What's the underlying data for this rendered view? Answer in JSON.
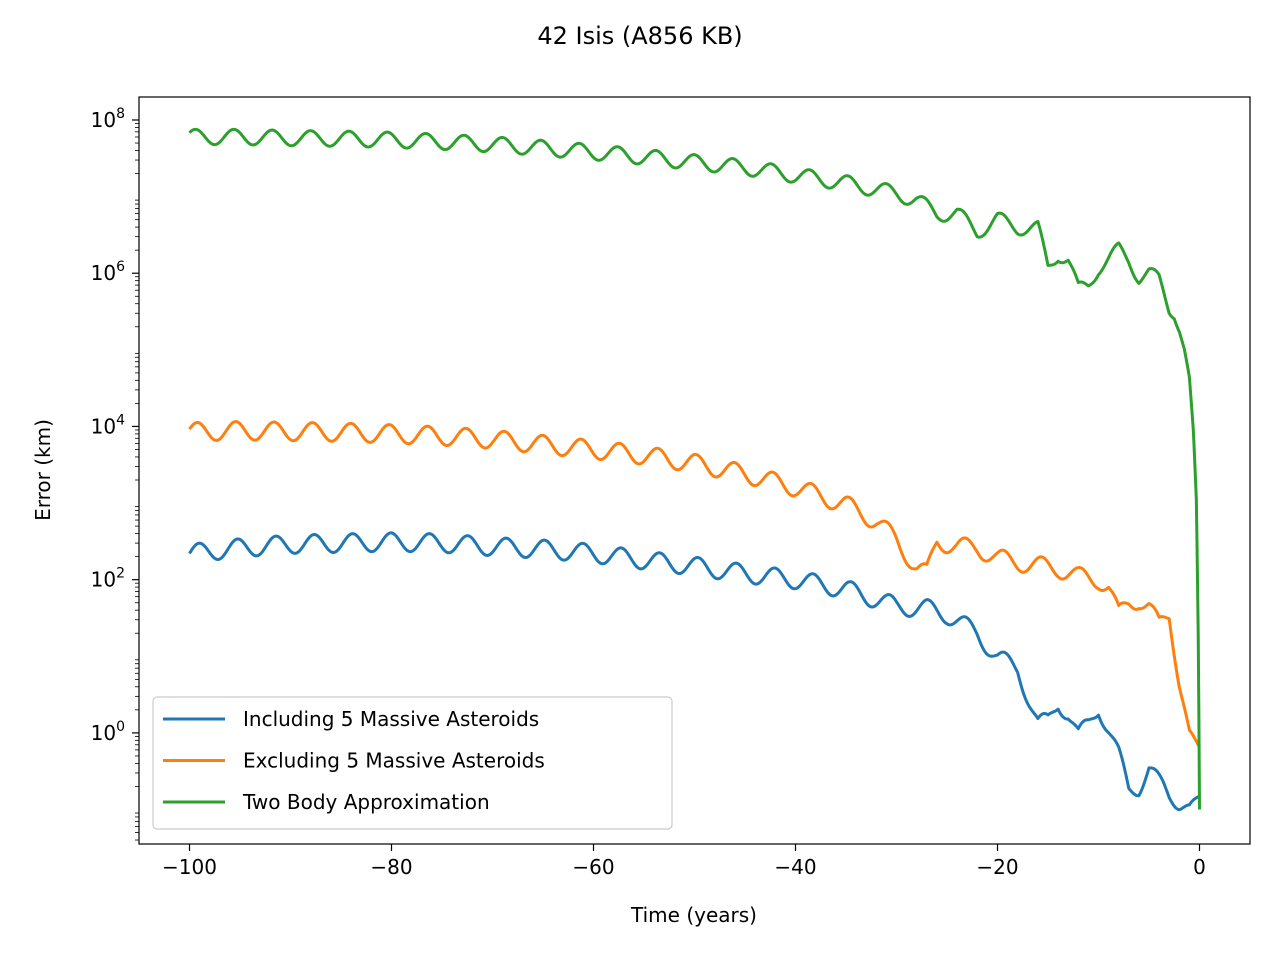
{
  "chart_data": {
    "type": "line",
    "title": "42 Isis (A856 KB)",
    "xlabel": "Time (years)",
    "ylabel": "Error (km)",
    "xscale": "linear",
    "yscale": "log",
    "xlim": [
      -105,
      5
    ],
    "ylim_log10": [
      -1.45,
      8.3
    ],
    "xticks": [
      -100,
      -80,
      -60,
      -40,
      -20,
      0
    ],
    "xtick_labels": [
      "−100",
      "−80",
      "−60",
      "−40",
      "−20",
      "0"
    ],
    "yticks_log10": [
      0,
      2,
      4,
      6,
      8
    ],
    "ytick_labels": [
      {
        "base": "10",
        "exp": "0"
      },
      {
        "base": "10",
        "exp": "2"
      },
      {
        "base": "10",
        "exp": "4"
      },
      {
        "base": "10",
        "exp": "6"
      },
      {
        "base": "10",
        "exp": "8"
      }
    ],
    "legend_position": "lower-left",
    "series": [
      {
        "name": "Including 5 Massive Asteroids",
        "color": "#1f77b4",
        "x": [
          -100,
          -95,
          -90,
          -85,
          -80,
          -75,
          -70,
          -65,
          -60,
          -55,
          -50,
          -45,
          -40,
          -35,
          -30,
          -27,
          -25,
          -22,
          -20,
          -18,
          -16,
          -15,
          -14,
          -13,
          -12,
          -11,
          -10,
          -9,
          -8,
          -7,
          -6,
          -5,
          -4,
          -3,
          -2,
          -1,
          0
        ],
        "y": [
          220,
          260,
          290,
          300,
          310,
          300,
          270,
          250,
          220,
          180,
          150,
          120,
          100,
          75,
          45,
          42,
          35,
          20,
          9.5,
          7,
          1.3,
          1.4,
          2.5,
          1.8,
          0.9,
          1.3,
          2.2,
          1.1,
          0.5,
          0.18,
          0.2,
          0.35,
          0.22,
          0.15,
          0.13,
          0.11,
          0.15
        ],
        "wobble_amp_log10": 0.12,
        "wobble_period_years": 3.8
      },
      {
        "name": "Excluding 5 Massive Asteroids",
        "color": "#ff7f0e",
        "x": [
          -100,
          -95,
          -90,
          -85,
          -80,
          -75,
          -70,
          -65,
          -60,
          -55,
          -50,
          -45,
          -40,
          -35,
          -32,
          -30,
          -28,
          -27,
          -26,
          -24,
          -22,
          -20,
          -17,
          -14,
          -12,
          -10,
          -9,
          -8,
          -7,
          -6,
          -5,
          -4,
          -3,
          -2,
          -1,
          0
        ],
        "y": [
          8500,
          8800,
          8600,
          8400,
          8000,
          7500,
          6800,
          5800,
          5000,
          4200,
          3300,
          2400,
          1600,
          950,
          580,
          330,
          140,
          120,
          320,
          270,
          260,
          190,
          160,
          140,
          110,
          100,
          80,
          35,
          50,
          55,
          45,
          25,
          35,
          5,
          1,
          0.65
        ],
        "wobble_amp_log10": 0.12,
        "wobble_period_years": 3.8
      },
      {
        "name": "Two Body Approximation",
        "color": "#2ca02c",
        "x": [
          -100,
          -95,
          -90,
          -85,
          -80,
          -75,
          -70,
          -65,
          -60,
          -55,
          -50,
          -45,
          -40,
          -35,
          -30,
          -28,
          -26,
          -24,
          -22,
          -20,
          -18,
          -16,
          -15,
          -14,
          -13,
          -12,
          -11,
          -10,
          -9,
          -8,
          -7,
          -6,
          -5,
          -4,
          -3,
          -2.5,
          -2,
          -1.5,
          -1,
          -0.6,
          -0.3,
          -0.1,
          0
        ],
        "y": [
          60000000,
          60000000,
          58000000,
          57000000,
          55000000,
          52000000,
          48000000,
          43000000,
          38000000,
          33000000,
          28000000,
          24000000,
          19000000,
          15000000,
          11000000,
          9000000,
          6000000,
          6000000,
          3500000,
          5000000,
          4000000,
          3800000,
          1200000,
          1800000,
          1500000,
          600000,
          700000,
          1200000,
          1500000,
          2000000,
          1500000,
          900000,
          1000000,
          800000,
          350000,
          320000,
          200000,
          100000,
          40000,
          8000,
          1000,
          10,
          0.1
        ],
        "wobble_amp_log10": 0.1,
        "wobble_period_years": 3.8
      }
    ]
  }
}
